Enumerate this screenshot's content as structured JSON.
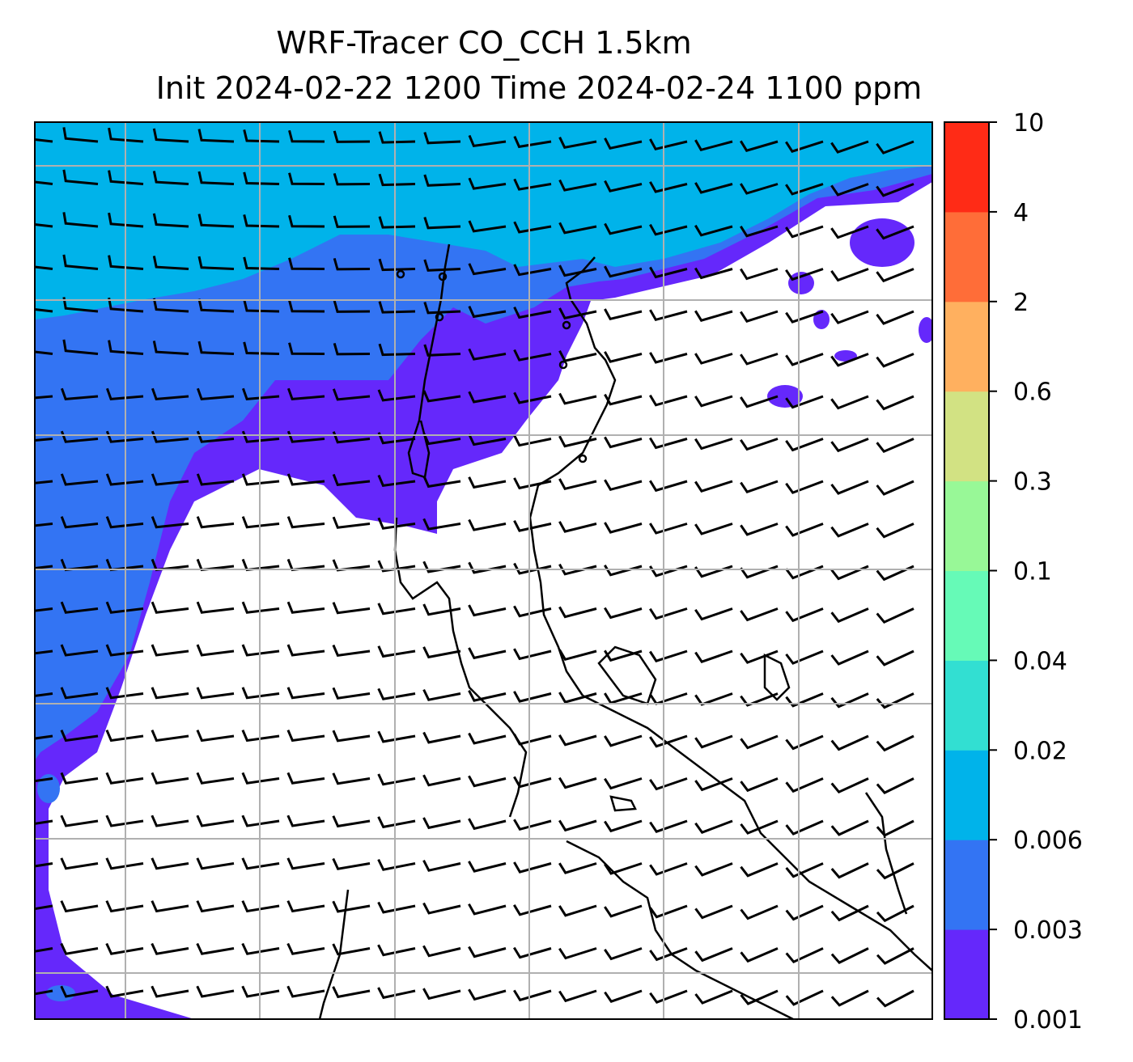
{
  "title": {
    "line1": "WRF-Tracer CO_CCH 1.5km",
    "line2": "Init 2024-02-22 1200 Time 2024-02-24 1100 ppm"
  },
  "colorbar": {
    "levels": [
      "0.001",
      "0.003",
      "0.006",
      "0.02",
      "0.04",
      "0.1",
      "0.3",
      "0.6",
      "2",
      "4",
      "10"
    ],
    "colors": [
      "#6528fb",
      "#3374f3",
      "#00b3ea",
      "#32dfd2",
      "#66fab7",
      "#98f897",
      "#d2e283",
      "#ffb05f",
      "#ff6d38",
      "#ff2b16"
    ]
  },
  "map": {
    "grid_color": "#b0b0b0",
    "coastline_color": "#000000",
    "barb_color": "#000000"
  }
}
